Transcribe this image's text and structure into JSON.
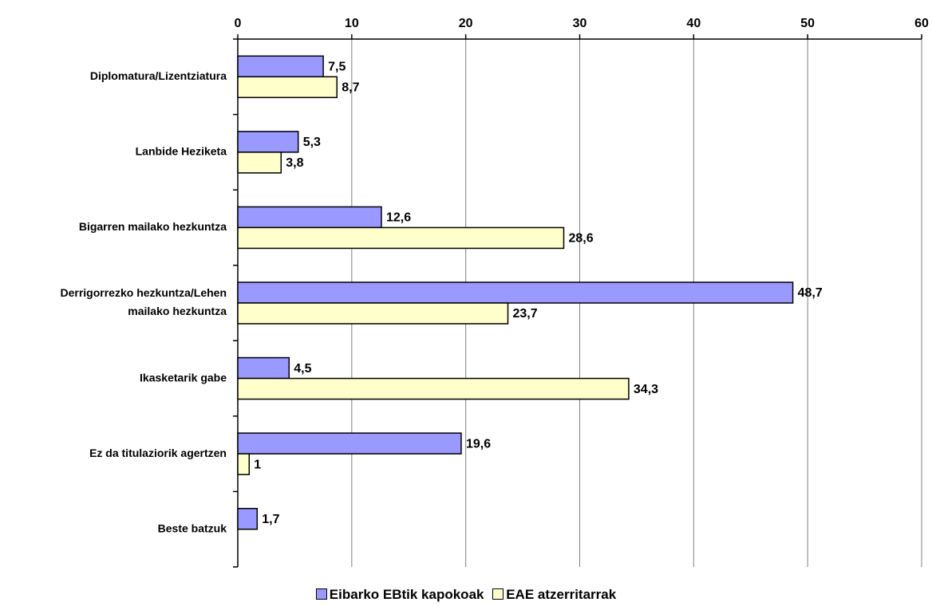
{
  "chart_data": {
    "type": "bar",
    "orientation": "horizontal",
    "title": "",
    "xlabel": "",
    "ylabel": "",
    "xlim": [
      0,
      60
    ],
    "x_ticks": [
      "0",
      "10",
      "20",
      "30",
      "40",
      "50",
      "60"
    ],
    "x_axis_position": "top",
    "grid": true,
    "legend_position": "bottom-center",
    "categories": [
      [
        "Diplomatura/Lizentziatura"
      ],
      [
        "Lanbide Heziketa"
      ],
      [
        "Bigarren mailako hezkuntza"
      ],
      [
        "Derrigorrezko hezkuntza/Lehen",
        "mailako hezkuntza"
      ],
      [
        "Ikasketarik gabe"
      ],
      [
        "Ez da titulaziorik agertzen"
      ],
      [
        "Beste batzuk"
      ]
    ],
    "series": [
      {
        "name": "Eibarko EBtik kapokoak",
        "color": "#9999ff",
        "values": [
          7.5,
          5.3,
          12.6,
          48.7,
          4.5,
          19.6,
          1.7
        ],
        "labels": [
          "7,5",
          "5,3",
          "12,6",
          "48,7",
          "4,5",
          "19,6",
          "1,7"
        ]
      },
      {
        "name": "EAE atzerritarrak",
        "color": "#ffffcc",
        "values": [
          8.7,
          3.8,
          28.6,
          23.7,
          34.3,
          1,
          null
        ],
        "labels": [
          "8,7",
          "3,8",
          "28,6",
          "23,7",
          "34,3",
          "1",
          ""
        ]
      }
    ]
  }
}
